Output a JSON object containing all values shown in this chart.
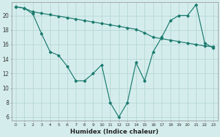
{
  "line1_x": [
    0,
    1,
    2,
    3,
    4,
    5,
    6,
    7,
    8,
    9,
    10,
    11,
    12,
    13,
    14,
    15,
    16,
    17,
    18,
    19,
    20,
    21,
    22,
    23
  ],
  "line1_y": [
    21.2,
    21.0,
    20.5,
    20.3,
    20.1,
    19.9,
    19.7,
    19.5,
    19.3,
    19.1,
    18.9,
    18.7,
    18.5,
    18.3,
    18.1,
    17.6,
    17.0,
    16.8,
    16.6,
    16.4,
    16.2,
    16.0,
    15.8,
    15.7
  ],
  "line2_x": [
    0,
    1,
    2,
    3,
    4,
    5,
    6,
    7,
    8,
    9,
    10,
    11,
    12,
    13,
    14,
    15,
    16,
    17,
    18,
    19,
    20,
    21,
    22,
    23
  ],
  "line2_y": [
    21.2,
    21.0,
    20.2,
    17.5,
    15.0,
    14.5,
    13.0,
    11.0,
    11.0,
    12.0,
    13.2,
    8.0,
    6.0,
    8.0,
    13.5,
    11.0,
    15.0,
    17.0,
    19.3,
    20.0,
    20.0,
    21.5,
    16.2,
    15.5
  ],
  "line_color": "#1a7a6e",
  "bg_color": "#d4edec",
  "grid_color": "#b8d8d6",
  "xlabel": "Humidex (Indice chaleur)",
  "ylim": [
    5.5,
    21.8
  ],
  "xlim": [
    -0.5,
    23.5
  ],
  "yticks": [
    6,
    8,
    10,
    12,
    14,
    16,
    18,
    20
  ],
  "xticks": [
    0,
    1,
    2,
    3,
    4,
    5,
    6,
    7,
    8,
    9,
    10,
    11,
    12,
    13,
    14,
    15,
    16,
    17,
    18,
    19,
    20,
    21,
    22,
    23
  ]
}
